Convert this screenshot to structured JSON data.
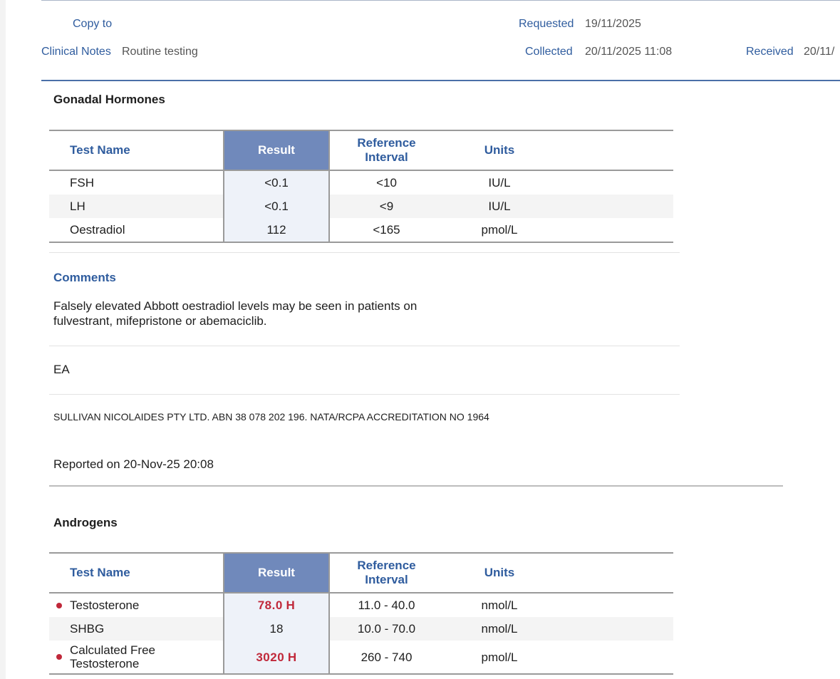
{
  "header": {
    "copy_to_label": "Copy to",
    "clinical_notes_label": "Clinical Notes",
    "clinical_notes_value": "Routine testing",
    "requested_label": "Requested",
    "requested_value": "19/11/2025",
    "collected_label": "Collected",
    "collected_value": "20/11/2025 11:08",
    "received_label": "Received",
    "received_value": "20/11/"
  },
  "gonadal": {
    "title": "Gonadal Hormones",
    "headers": {
      "name": "Test Name",
      "result": "Result",
      "ref_line1": "Reference",
      "ref_line2": "Interval",
      "units": "Units"
    },
    "rows": [
      {
        "name": "FSH",
        "result": "<0.1",
        "ref": "<10",
        "units": "IU/L"
      },
      {
        "name": "LH",
        "result": "<0.1",
        "ref": "<9",
        "units": "IU/L"
      },
      {
        "name": "Oestradiol",
        "result": "112",
        "ref": "<165",
        "units": "pmol/L"
      }
    ],
    "comments_title": "Comments",
    "comments_line1": "Falsely elevated Abbott oestradiol levels may be seen in patients on",
    "comments_line2": "fulvestrant, mifepristone or abemaciclib.",
    "initials": "EA",
    "lab_info": "SULLIVAN NICOLAIDES PTY LTD. ABN 38 078 202 196. NATA/RCPA ACCREDITATION NO 1964",
    "reported_on": "Reported on 20-Nov-25 20:08"
  },
  "androgens": {
    "title": "Androgens",
    "headers": {
      "name": "Test Name",
      "result": "Result",
      "ref_line1": "Reference",
      "ref_line2": "Interval",
      "units": "Units"
    },
    "rows": [
      {
        "name": "Testosterone",
        "result": "78.0",
        "flag": "H",
        "ref": "11.0 - 40.0",
        "units": "nmol/L"
      },
      {
        "name": "SHBG",
        "result": "18",
        "ref": "10.0 - 70.0",
        "units": "nmol/L"
      },
      {
        "name_line1": "Calculated Free",
        "name_line2": "Testosterone",
        "result": "3020",
        "flag": "H",
        "ref": "260 - 740",
        "units": "pmol/L"
      }
    ]
  },
  "colors": {
    "label_blue": "#2f5c9e",
    "result_header_bg": "#7089bb",
    "high_flag": "#c0283a"
  }
}
